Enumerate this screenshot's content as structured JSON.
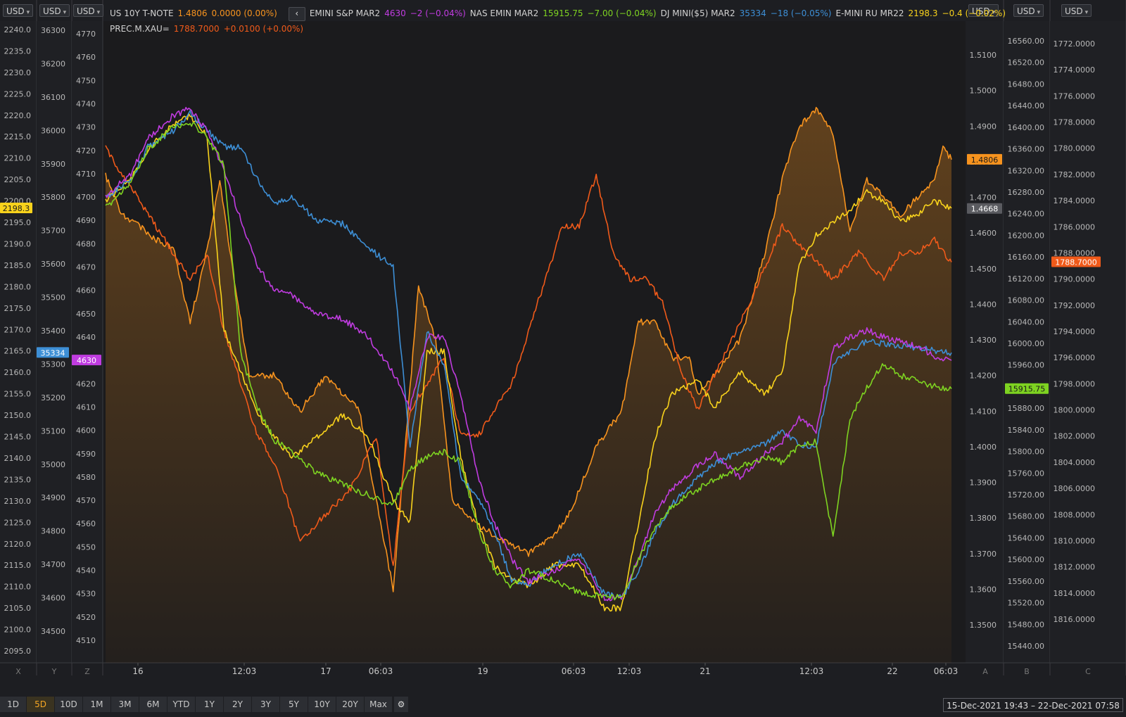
{
  "header": {
    "currency_buttons": [
      "USD",
      "USD",
      "USD",
      "USD",
      "USD",
      "USD"
    ],
    "legend_row1": [
      {
        "name": "US 10Y T-NOTE",
        "value": "1.4806",
        "change": "0.0000 (0.00%)",
        "color": "#f7931e"
      },
      {
        "name": "EMINI S&P MAR2",
        "value": "4630",
        "change": "−2 (−0.04%)",
        "color": "#c03ce0"
      },
      {
        "name": "NAS EMIN MAR2",
        "value": "15915.75",
        "change": "−7.00 (−0.04%)",
        "color": "#7ed321"
      },
      {
        "name": "DJ MINI($5) MAR2",
        "value": "35334",
        "change": "−18 (−0.05%)",
        "color": "#3d8fd6"
      },
      {
        "name": "E-MINI RU MR22",
        "value": "2198.3",
        "change": "−0.4 (−0.02%)",
        "color": "#f8d21c"
      }
    ],
    "legend_row2": [
      {
        "name": "PREC.M.XAU=",
        "value": "1788.7000",
        "change": "+0.0100 (+0.00%)",
        "color": "#f05a1a"
      }
    ]
  },
  "axes": {
    "ru": {
      "ticks": [
        "2240.0",
        "2235.0",
        "2230.0",
        "2225.0",
        "2220.0",
        "2215.0",
        "2210.0",
        "2205.0",
        "2200.0",
        "2195.0",
        "2190.0",
        "2185.0",
        "2180.0",
        "2175.0",
        "2170.0",
        "2165.0",
        "2160.0",
        "2155.0",
        "2150.0",
        "2145.0",
        "2140.0",
        "2135.0",
        "2130.0",
        "2125.0",
        "2120.0",
        "2115.0",
        "2110.0",
        "2105.0",
        "2100.0",
        "2095.0"
      ],
      "marker": "2198.3",
      "letter": "X"
    },
    "dj": {
      "ticks": [
        "36300",
        "36200",
        "36100",
        "36000",
        "35900",
        "35800",
        "35700",
        "35600",
        "35500",
        "35400",
        "35300",
        "35200",
        "35100",
        "35000",
        "34900",
        "34800",
        "34700",
        "34600",
        "34500"
      ],
      "marker": "35334",
      "letter": "Y"
    },
    "sp": {
      "ticks": [
        "4770",
        "4760",
        "4750",
        "4740",
        "4730",
        "4720",
        "4710",
        "4700",
        "4690",
        "4680",
        "4670",
        "4660",
        "4650",
        "4640",
        "4630",
        "4620",
        "4610",
        "4600",
        "4590",
        "4580",
        "4570",
        "4560",
        "4550",
        "4540",
        "4530",
        "4520",
        "4510"
      ],
      "marker": "4630",
      "letter": "Z"
    },
    "tnote": {
      "ticks": [
        "1.5100",
        "1.5000",
        "1.4900",
        "1.4800",
        "1.4700",
        "1.4600",
        "1.4500",
        "1.4400",
        "1.4300",
        "1.4200",
        "1.4100",
        "1.4000",
        "1.3900",
        "1.3800",
        "1.3700",
        "1.3600",
        "1.3500"
      ],
      "marker": "1.4806",
      "marker2": "1.4668",
      "letter": "A"
    },
    "nas": {
      "ticks": [
        "16560.00",
        "16520.00",
        "16480.00",
        "16440.00",
        "16400.00",
        "16360.00",
        "16320.00",
        "16280.00",
        "16240.00",
        "16200.00",
        "16160.00",
        "16120.00",
        "16080.00",
        "16040.00",
        "16000.00",
        "15960.00",
        "15920.00",
        "15880.00",
        "15840.00",
        "15800.00",
        "15760.00",
        "15720.00",
        "15680.00",
        "15640.00",
        "15600.00",
        "15560.00",
        "15520.00",
        "15480.00",
        "15440.00"
      ],
      "marker": "15915.75",
      "letter": "B"
    },
    "gold": {
      "ticks": [
        "1772.0000",
        "1774.0000",
        "1776.0000",
        "1778.0000",
        "1780.0000",
        "1782.0000",
        "1784.0000",
        "1786.0000",
        "1788.0000",
        "1790.0000",
        "1792.0000",
        "1794.0000",
        "1796.0000",
        "1798.0000",
        "1800.0000",
        "1802.0000",
        "1804.0000",
        "1806.0000",
        "1808.0000",
        "1810.0000",
        "1812.0000",
        "1814.0000",
        "1816.0000"
      ],
      "marker": "1788.7000",
      "letter": "C",
      "inverted": true
    },
    "time_labels": [
      "16",
      "12:03",
      "17",
      "06:03",
      "19",
      "06:03",
      "12:03",
      "21",
      "12:03",
      "22",
      "06:03"
    ]
  },
  "periods": [
    "1D",
    "5D",
    "10D",
    "1M",
    "3M",
    "6M",
    "YTD",
    "1Y",
    "2Y",
    "3Y",
    "5Y",
    "10Y",
    "20Y",
    "Max"
  ],
  "active_period": "5D",
  "date_range": "15-Dec-2021 19:43 – 22-Dec-2021 07:58",
  "chart_data": {
    "type": "line",
    "x_range": [
      "15-Dec-2021 19:43",
      "22-Dec-2021 07:58"
    ],
    "series": [
      {
        "name": "US 10Y T-NOTE",
        "color": "#f7931e",
        "axis": "tnote",
        "area": true,
        "t": [
          0,
          0.02,
          0.04,
          0.06,
          0.08,
          0.1,
          0.12,
          0.135,
          0.15,
          0.17,
          0.2,
          0.23,
          0.26,
          0.3,
          0.34,
          0.37,
          0.39,
          0.41,
          0.43,
          0.46,
          0.5,
          0.53,
          0.55,
          0.58,
          0.61,
          0.63,
          0.65,
          0.67,
          0.69,
          0.7,
          0.72,
          0.75,
          0.78,
          0.8,
          0.82,
          0.84,
          0.86,
          0.88,
          0.9,
          0.92,
          0.94,
          0.96,
          0.98,
          0.99,
          1.0
        ],
        "values": [
          1.476,
          1.465,
          1.462,
          1.458,
          1.456,
          1.435,
          1.455,
          1.475,
          1.45,
          1.42,
          1.42,
          1.41,
          1.42,
          1.41,
          1.36,
          1.445,
          1.43,
          1.385,
          1.38,
          1.375,
          1.37,
          1.375,
          1.382,
          1.4,
          1.41,
          1.435,
          1.435,
          1.425,
          1.425,
          1.415,
          1.42,
          1.43,
          1.455,
          1.475,
          1.49,
          1.495,
          1.488,
          1.46,
          1.475,
          1.47,
          1.465,
          1.47,
          1.475,
          1.484,
          1.4806
        ]
      },
      {
        "name": "EMINI S&P MAR2",
        "color": "#c03ce0",
        "axis": "sp",
        "t": [
          0,
          0.03,
          0.05,
          0.08,
          0.1,
          0.12,
          0.14,
          0.16,
          0.18,
          0.2,
          0.22,
          0.25,
          0.28,
          0.31,
          0.34,
          0.36,
          0.38,
          0.4,
          0.42,
          0.44,
          0.46,
          0.48,
          0.5,
          0.53,
          0.56,
          0.59,
          0.61,
          0.63,
          0.65,
          0.67,
          0.7,
          0.72,
          0.75,
          0.78,
          0.8,
          0.82,
          0.84,
          0.86,
          0.88,
          0.9,
          0.92,
          0.94,
          0.96,
          0.98,
          1.0
        ],
        "values": [
          4700,
          4710,
          4725,
          4735,
          4738,
          4728,
          4712,
          4690,
          4670,
          4660,
          4658,
          4650,
          4648,
          4640,
          4625,
          4610,
          4640,
          4640,
          4615,
          4580,
          4560,
          4545,
          4535,
          4540,
          4545,
          4528,
          4528,
          4545,
          4565,
          4575,
          4585,
          4590,
          4580,
          4590,
          4595,
          4605,
          4600,
          4635,
          4640,
          4643,
          4640,
          4638,
          4636,
          4632,
          4630
        ]
      },
      {
        "name": "NAS EMIN MAR2",
        "color": "#7ed321",
        "axis": "nas",
        "t": [
          0,
          0.03,
          0.05,
          0.08,
          0.1,
          0.12,
          0.14,
          0.16,
          0.18,
          0.2,
          0.22,
          0.25,
          0.28,
          0.31,
          0.34,
          0.36,
          0.38,
          0.4,
          0.42,
          0.44,
          0.46,
          0.48,
          0.5,
          0.53,
          0.56,
          0.59,
          0.61,
          0.63,
          0.65,
          0.67,
          0.7,
          0.72,
          0.75,
          0.78,
          0.8,
          0.82,
          0.84,
          0.86,
          0.88,
          0.9,
          0.92,
          0.94,
          0.96,
          0.98,
          1.0
        ],
        "values": [
          16250,
          16300,
          16360,
          16400,
          16410,
          16380,
          16330,
          15980,
          15880,
          15820,
          15800,
          15760,
          15740,
          15720,
          15700,
          15770,
          15790,
          15800,
          15780,
          15660,
          15580,
          15550,
          15580,
          15560,
          15540,
          15530,
          15530,
          15600,
          15660,
          15700,
          15730,
          15750,
          15770,
          15790,
          15780,
          15810,
          15820,
          15640,
          15860,
          15920,
          15960,
          15940,
          15930,
          15920,
          15916
        ]
      },
      {
        "name": "DJ MINI($5) MAR2",
        "color": "#3d8fd6",
        "axis": "dj",
        "t": [
          0,
          0.03,
          0.05,
          0.08,
          0.1,
          0.12,
          0.14,
          0.16,
          0.18,
          0.2,
          0.22,
          0.25,
          0.28,
          0.31,
          0.34,
          0.36,
          0.38,
          0.4,
          0.42,
          0.44,
          0.46,
          0.48,
          0.5,
          0.53,
          0.56,
          0.59,
          0.61,
          0.63,
          0.65,
          0.67,
          0.7,
          0.72,
          0.75,
          0.78,
          0.8,
          0.82,
          0.84,
          0.86,
          0.88,
          0.9,
          0.92,
          0.94,
          0.96,
          0.98,
          1.0
        ],
        "values": [
          35800,
          35850,
          35950,
          36000,
          36050,
          36000,
          35950,
          35950,
          35850,
          35780,
          35800,
          35730,
          35720,
          35650,
          35590,
          35050,
          35400,
          35300,
          34960,
          34900,
          34800,
          34650,
          34640,
          34700,
          34730,
          34610,
          34600,
          34680,
          34800,
          34880,
          34960,
          35000,
          35040,
          35060,
          35100,
          35060,
          35050,
          35300,
          35340,
          35370,
          35360,
          35355,
          35350,
          35340,
          35334
        ]
      },
      {
        "name": "E-MINI RU MR22",
        "color": "#f8d21c",
        "axis": "ru",
        "t": [
          0,
          0.03,
          0.05,
          0.08,
          0.1,
          0.12,
          0.14,
          0.16,
          0.18,
          0.2,
          0.22,
          0.25,
          0.28,
          0.31,
          0.34,
          0.36,
          0.38,
          0.4,
          0.42,
          0.44,
          0.46,
          0.48,
          0.5,
          0.53,
          0.56,
          0.59,
          0.61,
          0.63,
          0.65,
          0.67,
          0.7,
          0.72,
          0.75,
          0.78,
          0.8,
          0.82,
          0.84,
          0.86,
          0.88,
          0.9,
          0.92,
          0.94,
          0.96,
          0.98,
          1.0
        ],
        "values": [
          2200,
          2205,
          2212,
          2218,
          2220,
          2215,
          2170,
          2160,
          2150,
          2145,
          2140,
          2145,
          2150,
          2145,
          2130,
          2125,
          2165,
          2165,
          2140,
          2125,
          2115,
          2112,
          2110,
          2115,
          2115,
          2105,
          2105,
          2125,
          2145,
          2155,
          2158,
          2152,
          2160,
          2155,
          2160,
          2185,
          2192,
          2195,
          2198,
          2202,
          2200,
          2195,
          2197,
          2200,
          2198.3
        ]
      },
      {
        "name": "PREC.M.XAU=",
        "color": "#f05a1a",
        "axis": "gold",
        "t": [
          0,
          0.02,
          0.04,
          0.06,
          0.08,
          0.1,
          0.12,
          0.14,
          0.16,
          0.18,
          0.2,
          0.23,
          0.26,
          0.29,
          0.32,
          0.34,
          0.36,
          0.38,
          0.4,
          0.42,
          0.44,
          0.46,
          0.48,
          0.5,
          0.52,
          0.54,
          0.56,
          0.58,
          0.6,
          0.62,
          0.64,
          0.66,
          0.68,
          0.7,
          0.73,
          0.76,
          0.8,
          0.83,
          0.86,
          0.89,
          0.92,
          0.94,
          0.96,
          0.98,
          1.0
        ],
        "values": [
          1780,
          1782,
          1784,
          1786,
          1788,
          1790,
          1788,
          1794,
          1798,
          1802,
          1804,
          1810,
          1808,
          1806,
          1802,
          1812,
          1800,
          1798,
          1796,
          1802,
          1802,
          1800,
          1798,
          1794,
          1790,
          1786,
          1786,
          1782,
          1788,
          1790,
          1790,
          1792,
          1797,
          1800,
          1796,
          1792,
          1786,
          1788,
          1790,
          1788,
          1790,
          1788,
          1788,
          1787,
          1788.7
        ]
      }
    ]
  }
}
